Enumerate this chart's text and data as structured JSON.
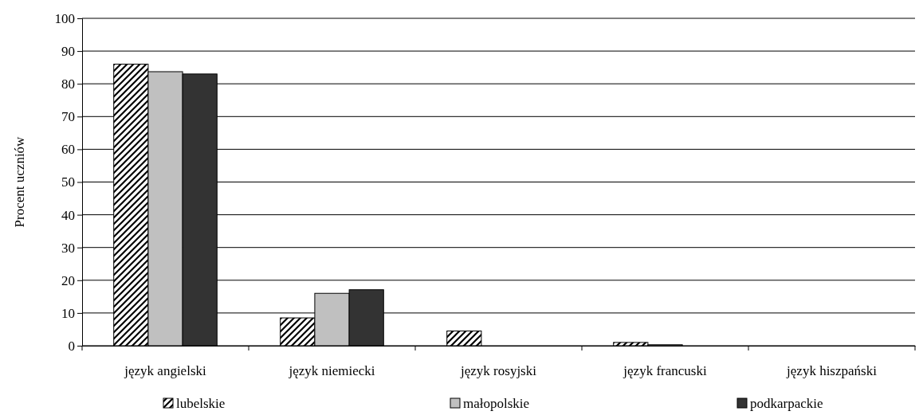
{
  "chart_data": {
    "type": "bar",
    "ylabel": "Procent uczniów",
    "categories": [
      "język angielski",
      "język niemiecki",
      "język rosyjski",
      "język francuski",
      "język hiszpański"
    ],
    "series": [
      {
        "name": "lubelskie",
        "color": "#000000",
        "values": [
          86,
          8.5,
          4.5,
          1,
          0
        ]
      },
      {
        "name": "małopolskie",
        "color": "#c0c0c0",
        "values": [
          83.7,
          16,
          0,
          0.3,
          0
        ]
      },
      {
        "name": "podkarpackie",
        "color": "#333333",
        "values": [
          83,
          17.1,
          0,
          0,
          0
        ]
      }
    ],
    "ylim": [
      0,
      100
    ],
    "yticks": [
      0,
      10,
      20,
      30,
      40,
      50,
      60,
      70,
      80,
      90,
      100
    ],
    "grid": "y",
    "legend": "bottom"
  }
}
